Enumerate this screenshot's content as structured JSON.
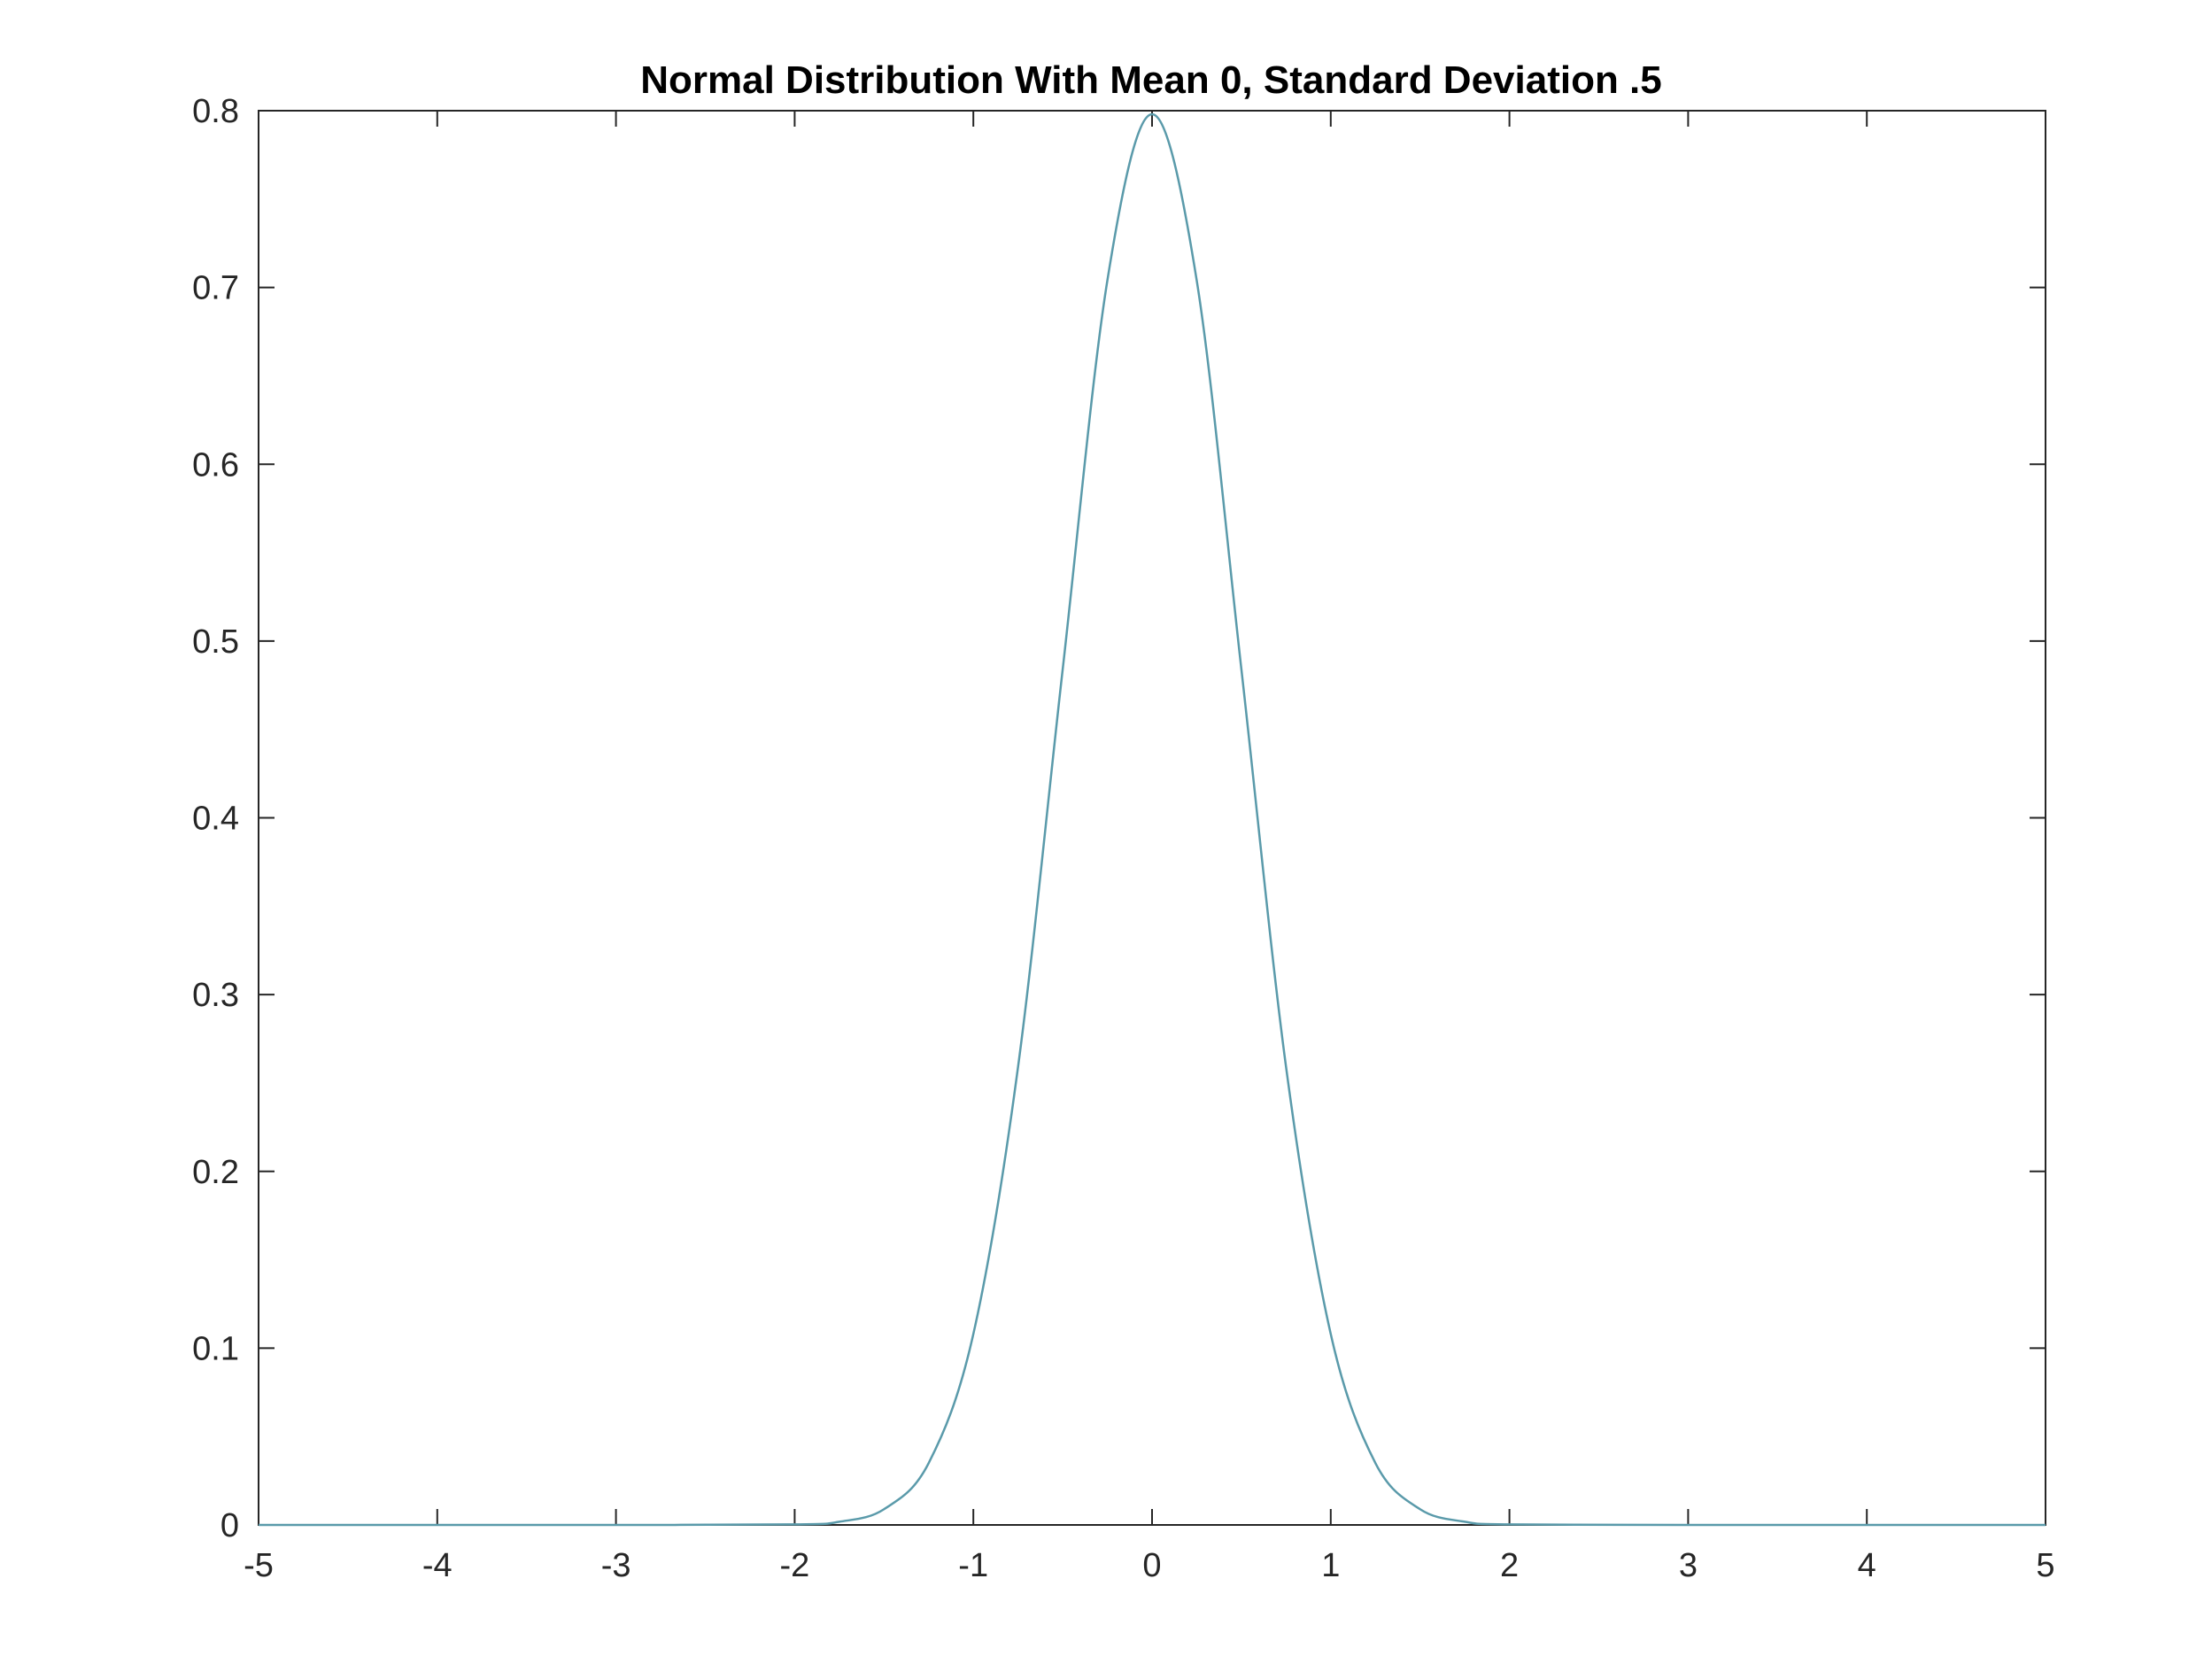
{
  "chart_data": {
    "type": "line",
    "title": "Normal Distribution With Mean 0, Standard Deviation .5",
    "xlabel": "",
    "ylabel": "",
    "xlim": [
      -5,
      5
    ],
    "ylim": [
      0,
      0.8
    ],
    "x_ticks": [
      -5,
      -4,
      -3,
      -2,
      -1,
      0,
      1,
      2,
      3,
      4,
      5
    ],
    "x_tick_labels": [
      "-5",
      "-4",
      "-3",
      "-2",
      "-1",
      "0",
      "1",
      "2",
      "3",
      "4",
      "5"
    ],
    "y_ticks": [
      0,
      0.1,
      0.2,
      0.3,
      0.4,
      0.5,
      0.6,
      0.7,
      0.8
    ],
    "y_tick_labels": [
      "0",
      "0.1",
      "0.2",
      "0.3",
      "0.4",
      "0.5",
      "0.6",
      "0.7",
      "0.8"
    ],
    "grid": false,
    "legend": "none",
    "series": [
      {
        "color": "#5a9aaa",
        "x": [
          -5,
          -4,
          -3,
          -2,
          -1.75,
          -1.5,
          -1.25,
          -1,
          -0.75,
          -0.5,
          -0.25,
          0,
          0.25,
          0.5,
          0.75,
          1,
          1.25,
          1.5,
          1.75,
          2,
          3,
          4,
          5
        ],
        "y": [
          0,
          0,
          0,
          0.0003,
          0.0018,
          0.0089,
          0.035,
          0.108,
          0.259,
          0.484,
          0.704,
          0.798,
          0.704,
          0.484,
          0.259,
          0.108,
          0.035,
          0.0089,
          0.0018,
          0.0003,
          0,
          0,
          0
        ]
      }
    ],
    "axis_color": "#262626",
    "background": "#ffffff"
  }
}
